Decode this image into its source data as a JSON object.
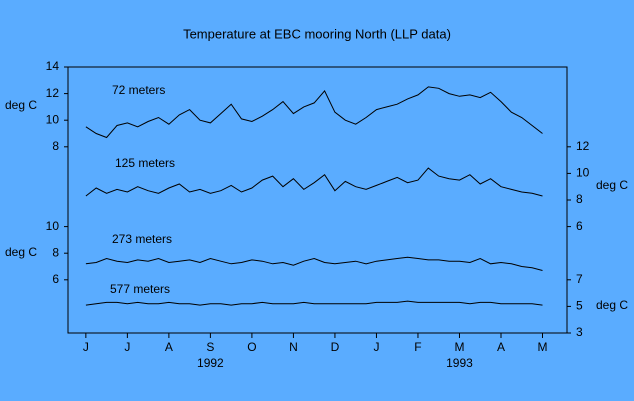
{
  "chart_data": {
    "type": "line",
    "title": "Temperature at EBC mooring North (LLP data)",
    "categories": [
      "J",
      "J",
      "A",
      "S",
      "O",
      "N",
      "D",
      "J",
      "F",
      "M",
      "A",
      "M"
    ],
    "year_labels": [
      {
        "value": 3,
        "label": "1992"
      },
      {
        "value": 9,
        "label": "1993"
      }
    ],
    "xlim": [
      -0.43,
      11.59
    ],
    "x": [
      0,
      0.25,
      0.5,
      0.75,
      1,
      1.25,
      1.5,
      1.75,
      2,
      2.25,
      2.5,
      2.75,
      3,
      3.25,
      3.5,
      3.75,
      4,
      4.25,
      4.5,
      4.75,
      5,
      5.25,
      5.5,
      5.75,
      6,
      6.25,
      6.5,
      6.75,
      7,
      7.25,
      7.5,
      7.75,
      8,
      8.25,
      8.5,
      8.75,
      9,
      9.25,
      9.5,
      9.75,
      10,
      10.25,
      10.5,
      10.75,
      11
    ],
    "axes": [
      {
        "side": "left",
        "label": "deg C",
        "ylim": [
          -6,
          14
        ],
        "yticks": [
          8,
          10,
          12,
          14
        ]
      },
      {
        "side": "right",
        "label": "deg C",
        "ylim": [
          -2,
          18
        ],
        "yticks": [
          6,
          8,
          10,
          12
        ]
      },
      {
        "side": "left",
        "label": "deg C",
        "ylim": [
          2,
          22
        ],
        "yticks": [
          6,
          8,
          10
        ]
      },
      {
        "side": "right",
        "label": "deg C",
        "ylim": [
          3,
          23
        ],
        "yticks": [
          3,
          5,
          7
        ]
      }
    ],
    "series": [
      {
        "name": "72 meters",
        "color": "#000000",
        "axis": 0,
        "values": [
          9.5,
          9.0,
          8.7,
          9.6,
          9.8,
          9.5,
          9.9,
          10.2,
          9.7,
          10.4,
          10.8,
          10.0,
          9.8,
          10.5,
          11.2,
          10.1,
          9.9,
          10.3,
          10.8,
          11.4,
          10.5,
          11.0,
          11.3,
          12.2,
          10.6,
          10.0,
          9.7,
          10.2,
          10.8,
          11.0,
          11.2,
          11.6,
          11.9,
          12.5,
          12.4,
          12.0,
          11.8,
          11.9,
          11.7,
          12.1,
          11.4,
          10.6,
          10.2,
          9.6,
          9.0
        ]
      },
      {
        "name": "125 meters",
        "color": "#000000",
        "axis": 1,
        "values": [
          8.3,
          8.9,
          8.5,
          8.8,
          8.6,
          9.0,
          8.7,
          8.5,
          8.9,
          9.2,
          8.6,
          8.8,
          8.5,
          8.7,
          9.1,
          8.6,
          8.9,
          9.5,
          9.8,
          9.0,
          9.6,
          8.8,
          9.3,
          9.9,
          8.7,
          9.4,
          9.0,
          8.8,
          9.1,
          9.4,
          9.7,
          9.3,
          9.5,
          10.4,
          9.8,
          9.6,
          9.5,
          9.9,
          9.2,
          9.6,
          9.0,
          8.8,
          8.6,
          8.5,
          8.3
        ]
      },
      {
        "name": "273 meters",
        "color": "#000000",
        "axis": 2,
        "values": [
          7.2,
          7.3,
          7.6,
          7.4,
          7.3,
          7.5,
          7.4,
          7.6,
          7.3,
          7.4,
          7.5,
          7.3,
          7.6,
          7.4,
          7.2,
          7.3,
          7.5,
          7.4,
          7.2,
          7.3,
          7.1,
          7.4,
          7.6,
          7.3,
          7.2,
          7.3,
          7.4,
          7.2,
          7.4,
          7.5,
          7.6,
          7.7,
          7.6,
          7.5,
          7.5,
          7.4,
          7.4,
          7.3,
          7.6,
          7.2,
          7.3,
          7.2,
          7.0,
          6.9,
          6.7
        ]
      },
      {
        "name": "577 meters",
        "color": "#000000",
        "axis": 3,
        "values": [
          5.1,
          5.2,
          5.3,
          5.3,
          5.2,
          5.3,
          5.2,
          5.2,
          5.3,
          5.2,
          5.2,
          5.1,
          5.2,
          5.2,
          5.1,
          5.2,
          5.2,
          5.3,
          5.2,
          5.2,
          5.2,
          5.3,
          5.2,
          5.2,
          5.2,
          5.2,
          5.2,
          5.2,
          5.3,
          5.3,
          5.3,
          5.4,
          5.3,
          5.3,
          5.3,
          5.3,
          5.3,
          5.2,
          5.3,
          5.3,
          5.2,
          5.2,
          5.2,
          5.2,
          5.1
        ]
      }
    ]
  }
}
